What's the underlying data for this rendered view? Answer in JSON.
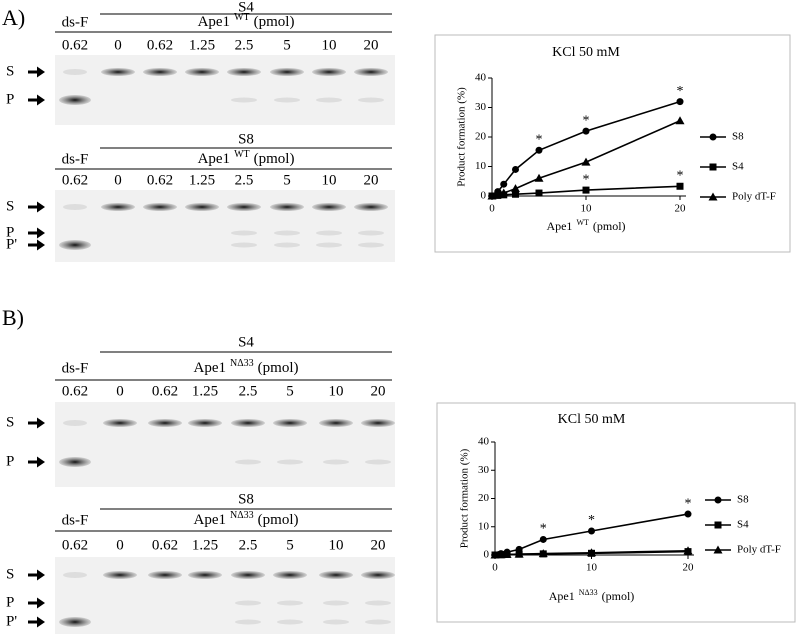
{
  "panels": [
    {
      "label": "A)",
      "gels": [
        {
          "title": "S4",
          "control": "ds-F",
          "enzyme": "Ape1",
          "enzyme_sup": "WT",
          "unit": "(pmol)",
          "amounts": [
            0.62,
            0,
            0.62,
            1.25,
            2.5,
            5,
            10,
            20
          ],
          "band_labels": [
            "S",
            "P"
          ]
        },
        {
          "title": "S8",
          "control": "ds-F",
          "enzyme": "Ape1",
          "enzyme_sup": "WT",
          "unit": "(pmol)",
          "amounts": [
            0.62,
            0,
            0.62,
            1.25,
            2.5,
            5,
            10,
            20
          ],
          "band_labels": [
            "S",
            "P",
            "P'"
          ]
        }
      ]
    },
    {
      "label": "B)",
      "gels": [
        {
          "title": "S4",
          "control": "ds-F",
          "enzyme": "Ape1",
          "enzyme_sup": "NΔ33",
          "unit": "(pmol)",
          "amounts": [
            0.62,
            0,
            0.62,
            1.25,
            2.5,
            5,
            10,
            20
          ],
          "band_labels": [
            "S",
            "P"
          ]
        },
        {
          "title": "S8",
          "control": "ds-F",
          "enzyme": "Ape1",
          "enzyme_sup": "NΔ33",
          "unit": "(pmol)",
          "amounts": [
            0.62,
            0,
            0.62,
            1.25,
            2.5,
            5,
            10,
            20
          ],
          "band_labels": [
            "S",
            "P",
            "P'"
          ]
        }
      ]
    }
  ],
  "chart_data": [
    {
      "type": "line",
      "title": "KCl 50 mM",
      "ylabel": "Product formation (%)",
      "xlabel": "Ape1",
      "xlabel_sup": "WT",
      "xlabel_unit": "(pmol)",
      "x": [
        0,
        0.62,
        1.25,
        2.5,
        5,
        10,
        20
      ],
      "xlim": [
        0,
        20
      ],
      "ylim": [
        0,
        40
      ],
      "xticks": [
        0,
        10,
        20
      ],
      "yticks": [
        0,
        10,
        20,
        30,
        40
      ],
      "series": [
        {
          "name": "S8",
          "color": "#000000",
          "marker": "circle",
          "values": [
            0,
            1.5,
            4,
            9,
            15.5,
            22,
            32
          ]
        },
        {
          "name": "S4",
          "color": "#000000",
          "marker": "square",
          "values": [
            0,
            0.2,
            0.4,
            0.6,
            1,
            2,
            3.3
          ]
        },
        {
          "name": "Poly dT-F",
          "color": "#000000",
          "marker": "triangle",
          "values": [
            0,
            0.5,
            1,
            2.5,
            6,
            11.5,
            25.5
          ]
        }
      ],
      "annotations": [
        {
          "text": "*",
          "x": 5,
          "y": 15.5
        },
        {
          "text": "*",
          "x": 10,
          "y": 22
        },
        {
          "text": "*",
          "x": 10,
          "y": 2
        },
        {
          "text": "*",
          "x": 20,
          "y": 32
        },
        {
          "text": "*",
          "x": 20,
          "y": 3.3
        }
      ]
    },
    {
      "type": "line",
      "title": "KCl 50 mM",
      "ylabel": "Product formation (%)",
      "xlabel": "Ape1",
      "xlabel_sup": "NΔ33",
      "xlabel_unit": "(pmol)",
      "x": [
        0,
        0.62,
        1.25,
        2.5,
        5,
        10,
        20
      ],
      "xlim": [
        0,
        20
      ],
      "ylim": [
        0,
        40
      ],
      "xticks": [
        0,
        10,
        20
      ],
      "yticks": [
        0,
        10,
        20,
        30,
        40
      ],
      "series": [
        {
          "name": "S8",
          "color": "#000000",
          "marker": "circle",
          "values": [
            0,
            0.5,
            1,
            2,
            5.5,
            8.5,
            14.5
          ]
        },
        {
          "name": "S4",
          "color": "#000000",
          "marker": "square",
          "values": [
            0,
            0.1,
            0.2,
            0.3,
            0.4,
            0.6,
            1.2
          ]
        },
        {
          "name": "Poly dT-F",
          "color": "#000000",
          "marker": "triangle",
          "values": [
            0,
            0.1,
            0.2,
            0.3,
            0.5,
            0.8,
            1.5
          ]
        }
      ],
      "annotations": [
        {
          "text": "*",
          "x": 5,
          "y": 5.5
        },
        {
          "text": "*",
          "x": 10,
          "y": 8.5
        },
        {
          "text": "*",
          "x": 20,
          "y": 14.5
        }
      ]
    }
  ]
}
